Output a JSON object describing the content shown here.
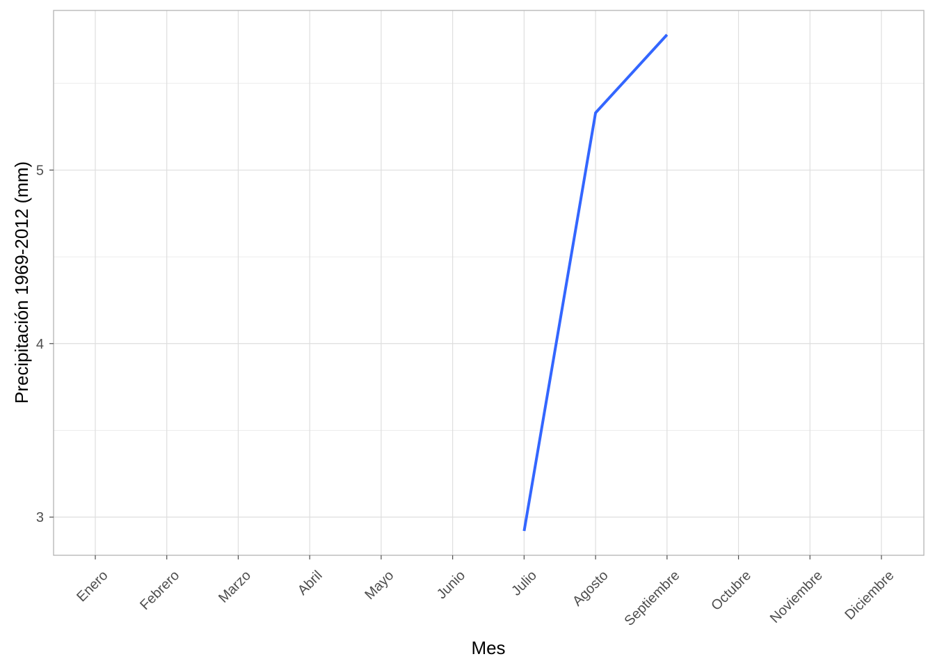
{
  "chart_data": {
    "type": "line",
    "title": "",
    "xlabel": "Mes",
    "ylabel": "Precipitación 1969-2012 (mm)",
    "categories": [
      "Enero",
      "Febrero",
      "Marzo",
      "Abril",
      "Mayo",
      "Junio",
      "Julio",
      "Agosto",
      "Septiembre",
      "Octubre",
      "Noviembre",
      "Diciembre"
    ],
    "series": [
      {
        "values": [
          null,
          null,
          null,
          null,
          null,
          null,
          2.92,
          5.33,
          5.78,
          null,
          null,
          null
        ],
        "color": "#3366ff"
      }
    ],
    "ylim": [
      2.78,
      5.92
    ],
    "yticks": [
      3,
      4,
      5
    ],
    "ytick_labels": [
      "3",
      "4",
      "5"
    ],
    "grid": true,
    "legend": "none"
  }
}
